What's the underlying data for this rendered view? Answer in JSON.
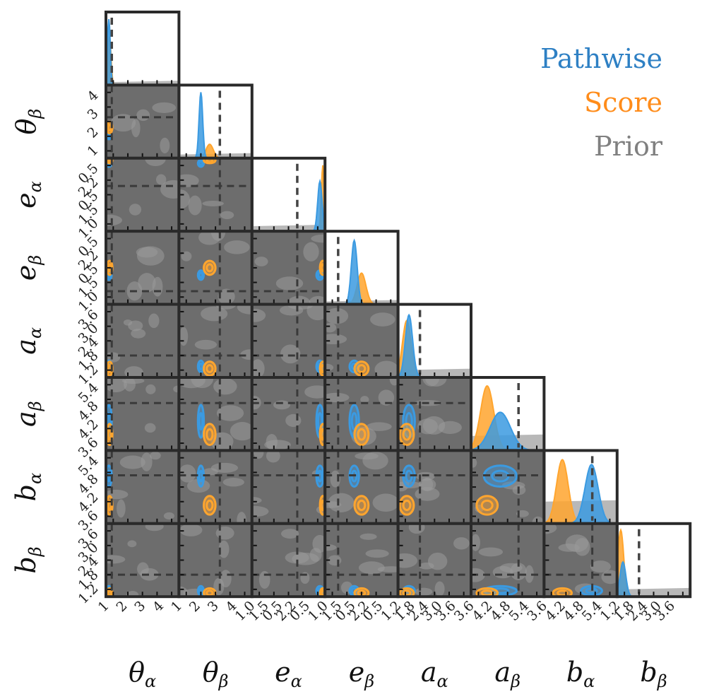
{
  "chart_data": {
    "type": "corner",
    "parameters": [
      "θα",
      "θβ",
      "eα",
      "eβ",
      "aα",
      "aβ",
      "bα",
      "bβ"
    ],
    "axis_labels": [
      {
        "base": "θ",
        "sub": "α"
      },
      {
        "base": "θ",
        "sub": "β"
      },
      {
        "base": "e",
        "sub": "α"
      },
      {
        "base": "e",
        "sub": "β"
      },
      {
        "base": "a",
        "sub": "α"
      },
      {
        "base": "a",
        "sub": "β"
      },
      {
        "base": "b",
        "sub": "α"
      },
      {
        "base": "b",
        "sub": "β"
      }
    ],
    "x_tick_labels": [
      [
        "1",
        "2",
        "3",
        "4"
      ],
      [
        "1",
        "2",
        "3",
        "4"
      ],
      [
        "1.0",
        "1.5",
        "0.5",
        "2.2",
        "0.5"
      ],
      [
        "1.0",
        "1.5",
        "0.5",
        "2.2",
        "0.5"
      ],
      [
        "1.2",
        "1.8",
        "2.4",
        "3.0",
        "3.6"
      ],
      [
        "3.6",
        "4.2",
        "4.8",
        "5.4"
      ],
      [
        "3.6",
        "4.2",
        "4.8",
        "5.4"
      ],
      [
        "1.2",
        "1.8",
        "2.4",
        "3.0",
        "3.6"
      ]
    ],
    "y_tick_labels": [
      null,
      [
        "1",
        "2",
        "3",
        "4"
      ],
      [
        "1.0",
        "1.5",
        "0.5",
        "2.2",
        "0.5"
      ],
      [
        "1.0",
        "1.5",
        "0.5",
        "2.2",
        "0.5"
      ],
      [
        "1.2",
        "1.8",
        "2.4",
        "3.0",
        "3.6"
      ],
      [
        "3.6",
        "4.2",
        "4.8",
        "5.4"
      ],
      [
        "3.6",
        "4.2",
        "4.8",
        "5.4"
      ],
      [
        "1.2",
        "1.8",
        "2.4",
        "3.0",
        "3.6"
      ]
    ],
    "truth_fraction": [
      0.08,
      0.56,
      0.62,
      0.18,
      0.3,
      0.65,
      0.66,
      0.3
    ],
    "marginals": [
      {
        "pathwise": {
          "mean": 0.04,
          "sd": 0.02,
          "height": 0.95
        },
        "score": {
          "mean": 0.05,
          "sd": 0.02,
          "height": 0.7
        },
        "prior_level": 0.04
      },
      {
        "pathwise": {
          "mean": 0.3,
          "sd": 0.025,
          "height": 0.95
        },
        "score": {
          "mean": 0.42,
          "sd": 0.05,
          "height": 0.2
        },
        "prior_level": 0.05
      },
      {
        "pathwise": {
          "mean": 0.93,
          "sd": 0.03,
          "height": 0.72
        },
        "score": {
          "mean": 0.97,
          "sd": 0.02,
          "height": 0.95
        },
        "prior_level": 0.07
      },
      {
        "pathwise": {
          "mean": 0.4,
          "sd": 0.04,
          "height": 0.92
        },
        "score": {
          "mean": 0.5,
          "sd": 0.06,
          "height": 0.45
        },
        "prior_level": 0.04
      },
      {
        "pathwise": {
          "mean": 0.15,
          "sd": 0.05,
          "height": 0.9
        },
        "score": {
          "mean": 0.12,
          "sd": 0.06,
          "height": 0.82
        },
        "prior_level": 0.1
      },
      {
        "pathwise": {
          "mean": 0.4,
          "sd": 0.14,
          "height": 0.55
        },
        "score": {
          "mean": 0.22,
          "sd": 0.09,
          "height": 0.93
        },
        "prior_level": 0.2
      },
      {
        "pathwise": {
          "mean": 0.65,
          "sd": 0.09,
          "height": 0.85
        },
        "score": {
          "mean": 0.25,
          "sd": 0.08,
          "height": 0.92
        },
        "prior_level": 0.3
      },
      {
        "pathwise": {
          "mean": 0.08,
          "sd": 0.04,
          "height": 0.5
        },
        "score": {
          "mean": 0.05,
          "sd": 0.04,
          "height": 0.96
        },
        "prior_level": 0.1
      }
    ],
    "legend": [
      {
        "name": "Pathwise",
        "color": "#3b8fd4"
      },
      {
        "name": "Score",
        "color": "#ff8c1a"
      },
      {
        "name": "Prior",
        "color": "#808080"
      }
    ],
    "legend_position": "top-right"
  }
}
